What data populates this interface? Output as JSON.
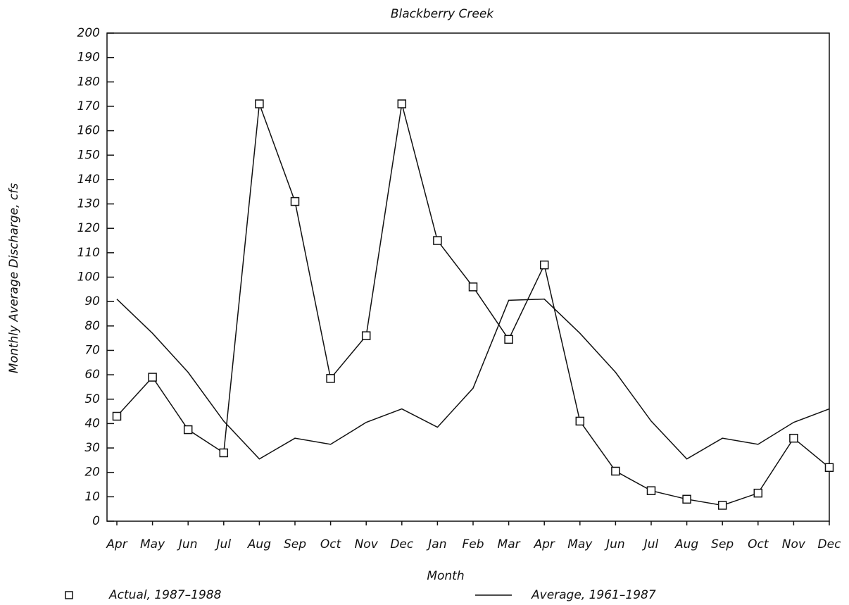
{
  "chart_data": {
    "type": "line",
    "title": "Blackberry Creek",
    "x_label": "Month",
    "y_label": "Monthly Average Discharge, cfs",
    "categories": [
      "Apr",
      "May",
      "Jun",
      "Jul",
      "Aug",
      "Sep",
      "Oct",
      "Nov",
      "Dec",
      "Jan",
      "Feb",
      "Mar",
      "Apr",
      "May",
      "Jun",
      "Jul",
      "Aug",
      "Sep",
      "Oct",
      "Nov",
      "Dec"
    ],
    "series": [
      {
        "name": "Actual, 1987–1988",
        "color": "#111111",
        "marker": "square",
        "values": [
          43,
          59,
          37.5,
          28,
          171,
          131,
          58.5,
          76,
          171,
          115,
          96,
          74.5,
          105,
          41,
          20.5,
          12.5,
          9,
          6.5,
          11.5,
          34,
          22
        ]
      },
      {
        "name": "Average, 1961–1987",
        "color": "#111111",
        "marker": "none",
        "values": [
          91,
          77,
          61,
          41,
          25.5,
          34,
          31.5,
          40.5,
          46,
          38.5,
          54.5,
          90.5,
          91,
          77,
          61,
          41,
          25.5,
          34,
          31.5,
          40.5,
          46
        ]
      }
    ],
    "ylim": [
      0,
      200
    ],
    "yticks": [
      0,
      10,
      20,
      30,
      40,
      50,
      60,
      70,
      80,
      90,
      100,
      110,
      120,
      130,
      140,
      150,
      160,
      170,
      180,
      190,
      200
    ],
    "legend": "bottom"
  }
}
